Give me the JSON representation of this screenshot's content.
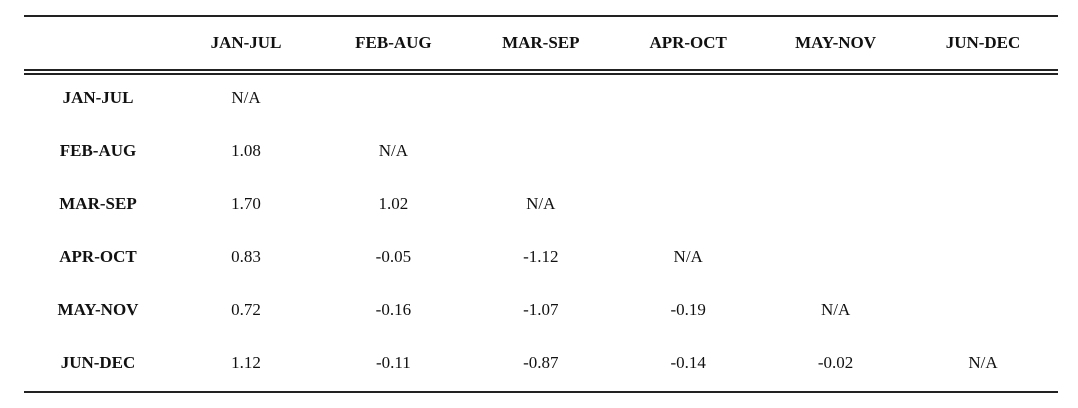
{
  "table": {
    "columns": [
      "JAN-JUL",
      "FEB-AUG",
      "MAR-SEP",
      "APR-OCT",
      "MAY-NOV",
      "JUN-DEC"
    ],
    "rows": [
      {
        "label": "JAN-JUL",
        "cells": [
          "N/A"
        ]
      },
      {
        "label": "FEB-AUG",
        "cells": [
          "1.08",
          "N/A"
        ]
      },
      {
        "label": "MAR-SEP",
        "cells": [
          "1.70",
          "1.02",
          "N/A"
        ]
      },
      {
        "label": "APR-OCT",
        "cells": [
          "0.83",
          "-0.05",
          "-1.12",
          "N/A"
        ]
      },
      {
        "label": "MAY-NOV",
        "cells": [
          "0.72",
          "-0.16",
          "-1.07",
          "-0.19",
          "N/A"
        ]
      },
      {
        "label": "JUN-DEC",
        "cells": [
          "1.12",
          "-0.11",
          "-0.87",
          "-0.14",
          "-0.02",
          "N/A"
        ]
      }
    ]
  }
}
